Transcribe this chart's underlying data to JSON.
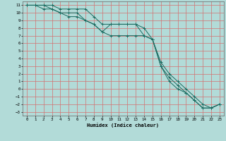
{
  "xlabel": "Humidex (Indice chaleur)",
  "bg_color": "#b2dbd8",
  "grid_color": "#d47070",
  "line_color": "#1a6b60",
  "xlim": [
    -0.5,
    23.5
  ],
  "ylim": [
    -3.5,
    11.5
  ],
  "xticks": [
    0,
    1,
    2,
    3,
    4,
    5,
    6,
    7,
    8,
    9,
    10,
    11,
    12,
    13,
    14,
    15,
    16,
    17,
    18,
    19,
    20,
    21,
    22,
    23
  ],
  "yticks": [
    -3,
    -2,
    -1,
    0,
    1,
    2,
    3,
    4,
    5,
    6,
    7,
    8,
    9,
    10,
    11
  ],
  "line1_x": [
    0,
    1,
    2,
    3,
    4,
    5,
    6,
    7,
    8,
    9,
    10,
    11,
    12,
    13,
    14,
    15,
    16,
    17,
    18,
    19,
    20,
    21,
    22,
    23
  ],
  "line1_y": [
    11,
    11,
    11,
    11,
    10.5,
    10.5,
    10.5,
    10.5,
    9.5,
    8.5,
    8.5,
    8.5,
    8.5,
    8.5,
    7.0,
    6.5,
    3.0,
    1.0,
    0.0,
    -0.5,
    -1.5,
    -2.5,
    -2.5,
    -2.0
  ],
  "line2_x": [
    0,
    1,
    2,
    3,
    4,
    5,
    6,
    7,
    8,
    9,
    10,
    11,
    12,
    13,
    14,
    15,
    16,
    17,
    18,
    19,
    20,
    21,
    22,
    23
  ],
  "line2_y": [
    11,
    11,
    10.5,
    10.5,
    10.0,
    9.5,
    9.5,
    9.0,
    8.5,
    7.5,
    8.5,
    8.5,
    8.5,
    8.5,
    8.0,
    6.5,
    3.5,
    2.0,
    1.0,
    0.0,
    -1.0,
    -2.0,
    -2.5,
    -2.0
  ],
  "line3_x": [
    0,
    1,
    2,
    3,
    4,
    5,
    6,
    7,
    8,
    9,
    10,
    11,
    12,
    13,
    14,
    15,
    16,
    17,
    18,
    19,
    20,
    21,
    22,
    23
  ],
  "line3_y": [
    11,
    11,
    11,
    10.5,
    10.0,
    10.0,
    10.0,
    9.0,
    8.5,
    7.5,
    7.0,
    7.0,
    7.0,
    7.0,
    7.0,
    6.5,
    3.0,
    1.5,
    0.5,
    -0.5,
    -1.5,
    -2.5,
    -2.5,
    -2.0
  ]
}
